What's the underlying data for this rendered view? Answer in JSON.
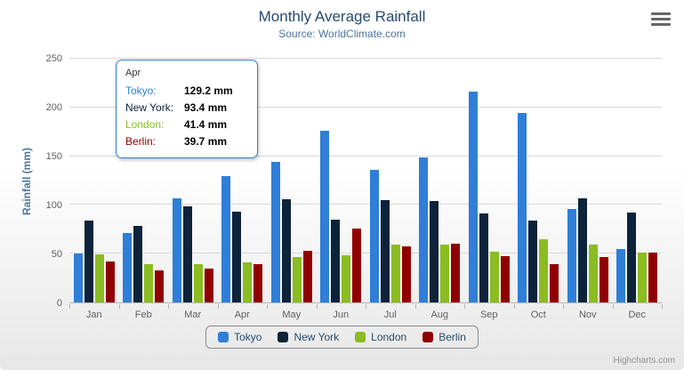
{
  "chart": {
    "title": "Monthly Average Rainfall",
    "subtitle": "Source: WorldClimate.com",
    "y_axis_title": "Rainfall (mm)",
    "y_ticks": [
      0,
      50,
      100,
      150,
      200,
      250
    ],
    "credits": "Highcharts.com",
    "menu_icon": "hamburger-icon"
  },
  "chart_data": {
    "type": "bar",
    "title": "Monthly Average Rainfall",
    "subtitle": "Source: WorldClimate.com",
    "xlabel": "",
    "ylabel": "Rainfall (mm)",
    "ylim": [
      0,
      250
    ],
    "grid": true,
    "legend_position": "bottom",
    "categories": [
      "Jan",
      "Feb",
      "Mar",
      "Apr",
      "May",
      "Jun",
      "Jul",
      "Aug",
      "Sep",
      "Oct",
      "Nov",
      "Dec"
    ],
    "series": [
      {
        "name": "Tokyo",
        "color": "#2f7ed8",
        "values": [
          49.9,
          71.5,
          106.4,
          129.2,
          144.0,
          176.0,
          135.6,
          148.5,
          216.4,
          194.1,
          95.6,
          54.4
        ]
      },
      {
        "name": "New York",
        "color": "#0d233a",
        "values": [
          83.6,
          78.8,
          98.5,
          93.4,
          106.0,
          84.5,
          105.0,
          104.3,
          91.2,
          83.5,
          106.6,
          92.3
        ]
      },
      {
        "name": "London",
        "color": "#8bbc21",
        "values": [
          48.9,
          38.8,
          39.3,
          41.4,
          47.0,
          48.3,
          59.0,
          59.6,
          52.4,
          65.2,
          59.3,
          51.2
        ]
      },
      {
        "name": "Berlin",
        "color": "#910000",
        "values": [
          42.4,
          33.2,
          34.5,
          39.7,
          52.6,
          75.5,
          57.4,
          60.4,
          47.6,
          39.1,
          46.8,
          51.1
        ]
      }
    ]
  },
  "tooltip": {
    "category": "Apr",
    "border_color": "#2f7ed8",
    "rows": [
      {
        "label": "Tokyo:",
        "value": "129.2 mm",
        "color": "#2f7ed8"
      },
      {
        "label": "New York:",
        "value": "93.4 mm",
        "color": "#0d233a"
      },
      {
        "label": "London:",
        "value": "41.4 mm",
        "color": "#8bbc21"
      },
      {
        "label": "Berlin:",
        "value": "39.7 mm",
        "color": "#910000"
      }
    ]
  },
  "legend": {
    "items": [
      "Tokyo",
      "New York",
      "London",
      "Berlin"
    ]
  }
}
